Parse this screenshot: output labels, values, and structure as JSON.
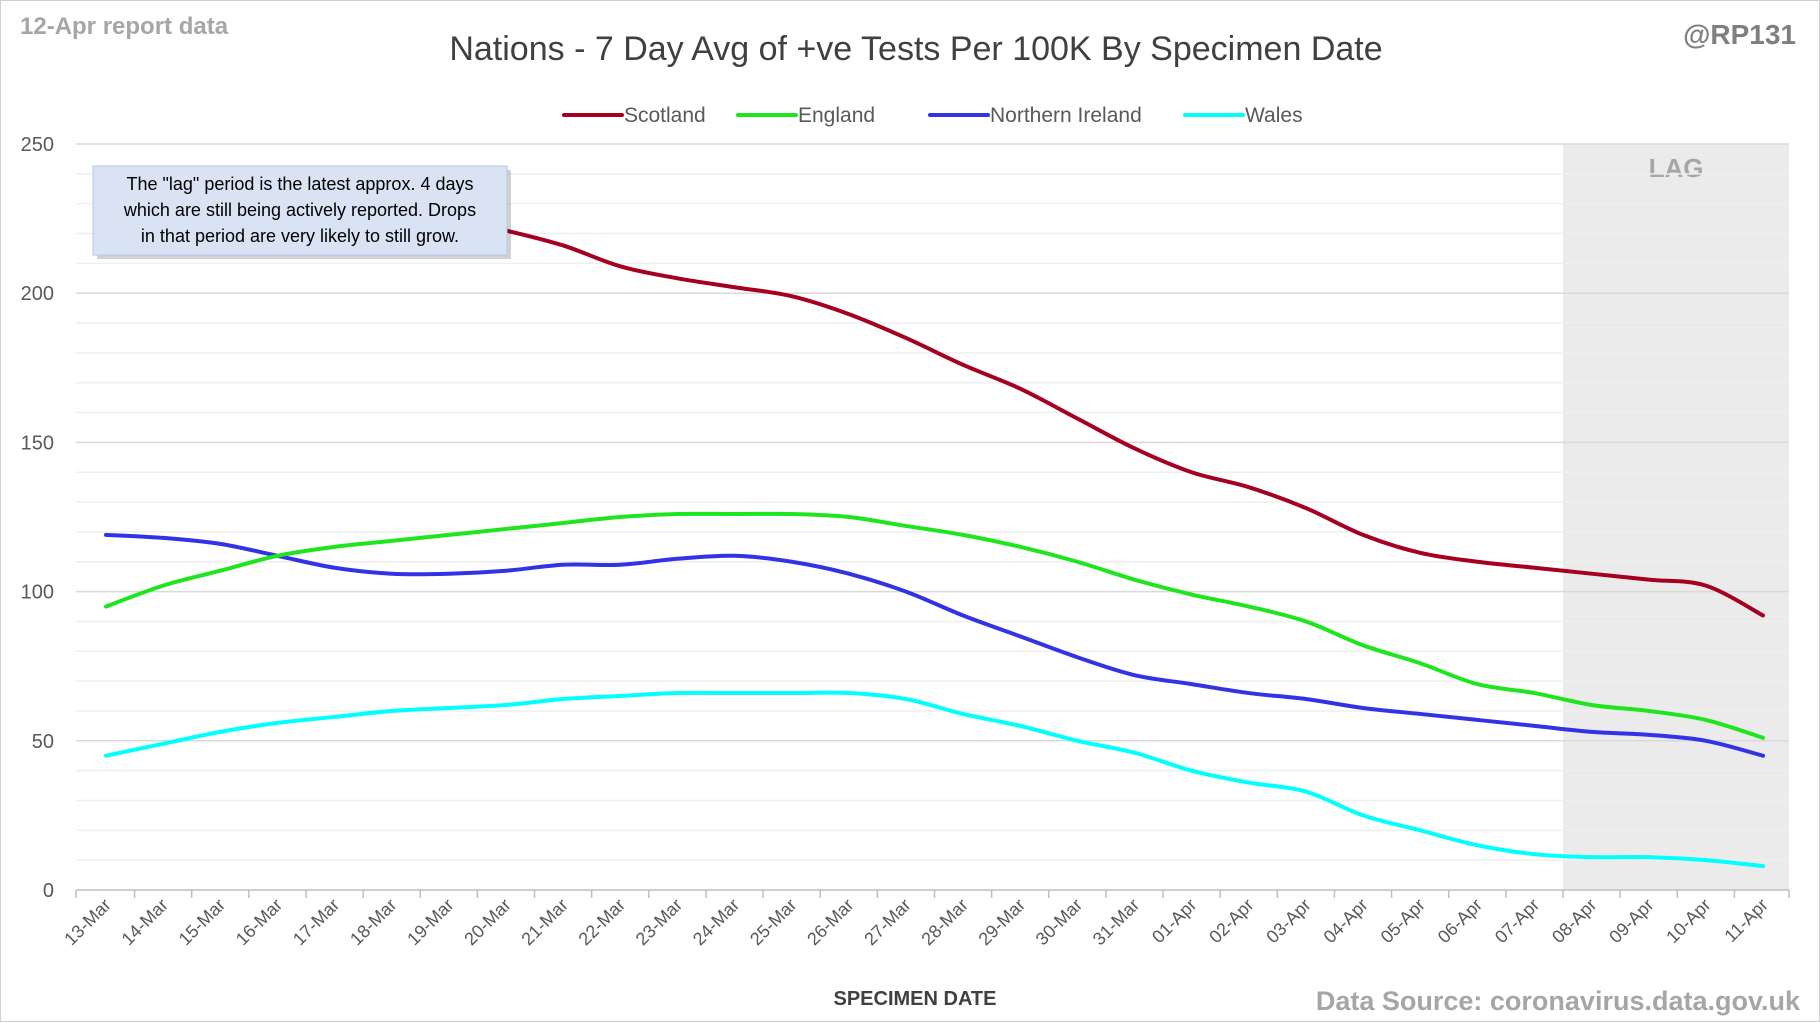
{
  "header": {
    "report_label": "12-Apr report data",
    "handle": "@RP131",
    "source": "Data Source: coronavirus.data.gov.uk"
  },
  "annotation": {
    "lines": [
      "The \"lag\" period is the latest approx. 4 days",
      "which are still being actively reported.  Drops",
      "in that period are very likely to still grow."
    ],
    "lag_label": "LAG",
    "lag_start": "08-Apr",
    "lag_end": "11-Apr"
  },
  "chart_data": {
    "type": "line",
    "title": "Nations - 7 Day Avg of +ve Tests Per 100K By Specimen Date",
    "xlabel": "SPECIMEN DATE",
    "ylabel": "",
    "ylim": [
      0,
      250
    ],
    "yticks": [
      0,
      50,
      100,
      150,
      200,
      250
    ],
    "grid": true,
    "legend_position": "top-center",
    "categories": [
      "13-Mar",
      "14-Mar",
      "15-Mar",
      "16-Mar",
      "17-Mar",
      "18-Mar",
      "19-Mar",
      "20-Mar",
      "21-Mar",
      "22-Mar",
      "23-Mar",
      "24-Mar",
      "25-Mar",
      "26-Mar",
      "27-Mar",
      "28-Mar",
      "29-Mar",
      "30-Mar",
      "31-Mar",
      "01-Apr",
      "02-Apr",
      "03-Apr",
      "04-Apr",
      "05-Apr",
      "06-Apr",
      "07-Apr",
      "08-Apr",
      "09-Apr",
      "10-Apr",
      "11-Apr"
    ],
    "series": [
      {
        "name": "Scotland",
        "color": "#a50021",
        "values": [
          232,
          233,
          232,
          231,
          230,
          228,
          225,
          221,
          216,
          209,
          205,
          202,
          199,
          193,
          185,
          176,
          168,
          158,
          148,
          140,
          135,
          128,
          119,
          113,
          110,
          108,
          106,
          104,
          102,
          92
        ]
      },
      {
        "name": "England",
        "color": "#1ee51e",
        "values": [
          95,
          102,
          107,
          112,
          115,
          117,
          119,
          121,
          123,
          125,
          126,
          126,
          126,
          125,
          122,
          119,
          115,
          110,
          104,
          99,
          95,
          90,
          82,
          76,
          69,
          66,
          62,
          60,
          57,
          51
        ]
      },
      {
        "name": "Northern Ireland",
        "color": "#3333e6",
        "values": [
          119,
          118,
          116,
          112,
          108,
          106,
          106,
          107,
          109,
          109,
          111,
          112,
          110,
          106,
          100,
          92,
          85,
          78,
          72,
          69,
          66,
          64,
          61,
          59,
          57,
          55,
          53,
          52,
          50,
          45
        ]
      },
      {
        "name": "Wales",
        "color": "#00ffff",
        "values": [
          45,
          49,
          53,
          56,
          58,
          60,
          61,
          62,
          64,
          65,
          66,
          66,
          66,
          66,
          64,
          59,
          55,
          50,
          46,
          40,
          36,
          33,
          25,
          20,
          15,
          12,
          11,
          11,
          10,
          8
        ]
      }
    ]
  }
}
